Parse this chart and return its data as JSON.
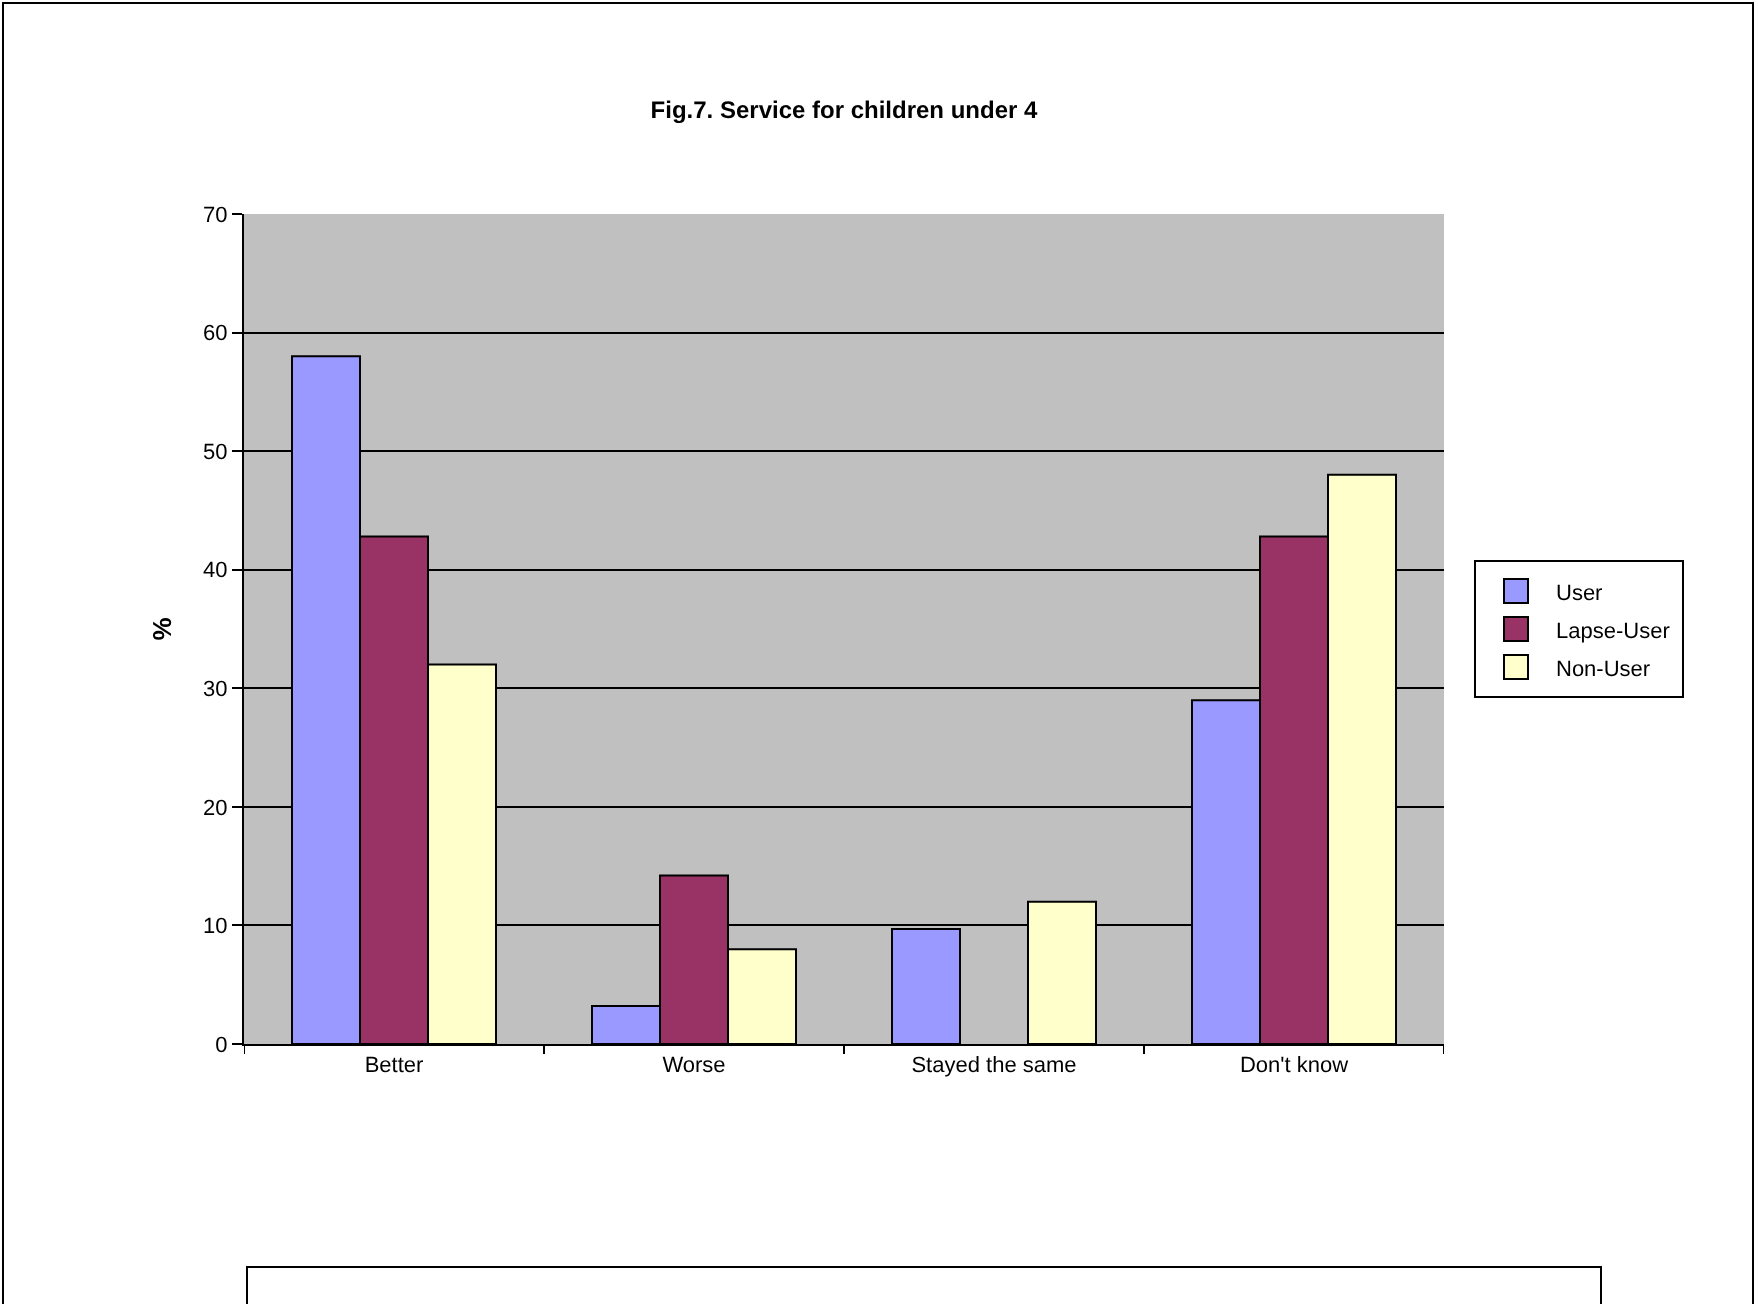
{
  "chart_data": {
    "type": "bar",
    "title": "Fig.7. Service for children under 4",
    "ylabel": "%",
    "categories": [
      "Better",
      "Worse",
      "Stayed the same",
      "Don't know"
    ],
    "series": [
      {
        "name": "User",
        "color": "#9999ff",
        "values": [
          58,
          3.2,
          9.7,
          29
        ]
      },
      {
        "name": "Lapse-User",
        "color": "#993366",
        "values": [
          42.8,
          14.2,
          null,
          42.8
        ]
      },
      {
        "name": "Non-User",
        "color": "#ffffcc",
        "values": [
          32,
          8,
          12,
          48
        ]
      }
    ],
    "ylim": [
      0,
      70
    ],
    "yticks": [
      0,
      10,
      20,
      30,
      40,
      50,
      60,
      70
    ],
    "grid": "y",
    "legend": "right"
  }
}
